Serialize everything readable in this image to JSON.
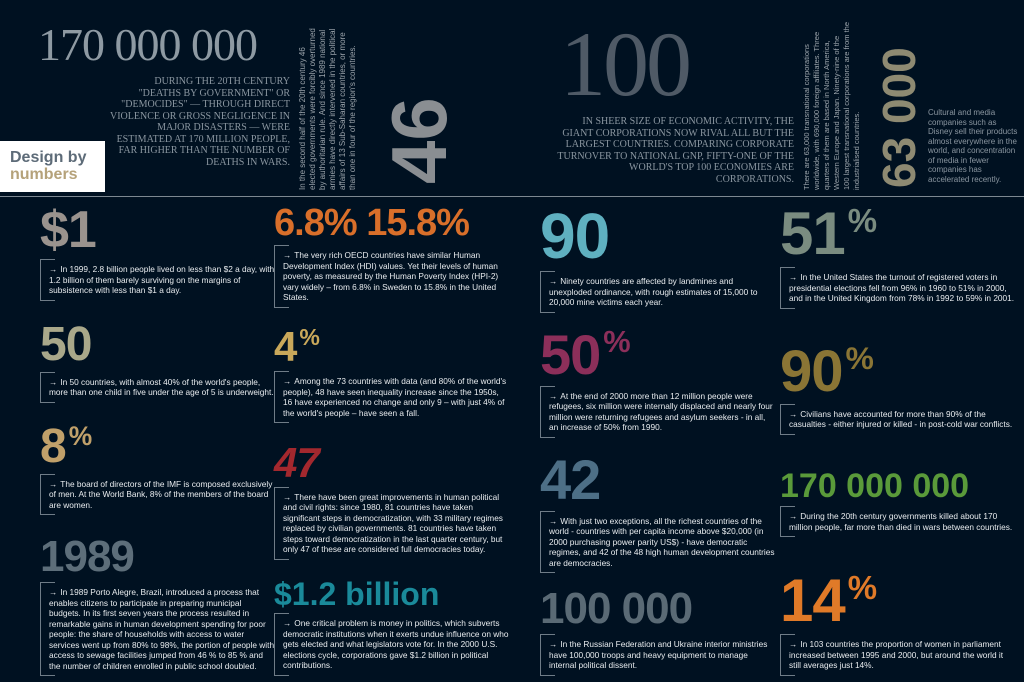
{
  "header": {
    "logo": {
      "line1": "Design by",
      "line2": "numbers",
      "colors": {
        "line1": "#5d6b78",
        "line2": "#b5a27a"
      }
    },
    "deaths": {
      "figure": "170 000 000",
      "text": "During the 20th century \"deaths by government\" or \"democides\" — through direct violence or gross negligence in major disasters — were estimated at 170 million people, far higher than the number of deaths in wars."
    },
    "coups": {
      "figure": "46",
      "text": "In the second half of the 20th century 46 elected governments were forcibly overturned by authoritarian rule. And since 1989 national armies have directly intervened in the political affairs of 13 Sub-Saharan countries, or more than one in four of the region's countries."
    },
    "economies": {
      "figure": "100",
      "text": "In sheer size of economic activity, the giant corporations now rival all but the largest countries. Comparing corporate turnover to national GNP, fifty-one of the world's top 100 economies are corporations."
    },
    "transnationals": {
      "figure": "63 000",
      "text": "There are 63,000 transnational corporations worldwide, with 690,000 foreign affiliates. Three quarters of them are based in North America, Western Europe and Japan. Ninety-nine of the 100 largest transnational corporations are from the industrialised countries."
    },
    "media": {
      "text": "Cultural and media companies such as Disney sell their products almost everywhere in the world, and concentration of media in fewer companies has accelerated recently."
    }
  },
  "arrow_icon": "→",
  "facts": [
    {
      "figure": "$1",
      "color": "#9a938e",
      "text": "In 1999, 2.8 billion people lived on less than $2 a day, with 1.2 billion of them barely surviving on the margins of subsistence with less than $1 a day."
    },
    {
      "figure": "50",
      "color": "#a9a88a",
      "text": "In 50 countries, with almost 40% of the world's people, more than one child in five under the age of 5 is underweight."
    },
    {
      "figure": "8",
      "suffix": "%",
      "color": "#c0a06a",
      "text": "The board of directors of the IMF is composed exclusively of men. At the World Bank, 8% of the members of the board are women."
    },
    {
      "figure": "1989",
      "color": "#5d6e7a",
      "text": "In 1989 Porto Alegre, Brazil, introduced a process that enables citizens to participate in preparing municipal budgets. In its first seven years the process resulted in remarkable gains in human development spending for poor people: the share of households with access to water services went up from 80% to 98%, the portion of people with access to sewage facilities jumped from 46 % to 85 % and the number of children enrolled in public school doubled."
    },
    {
      "figure": "6.8",
      "figure2": "15.8",
      "suffix": "%",
      "color": "#d96f2a",
      "text": "The very rich OECD countries have similar Human Development Index (HDI) values. Yet their levels of human poverty, as measured by the Human Poverty Index (HPI-2) vary widely – from 6.8% in Sweden to 15.8% in the United States."
    },
    {
      "figure": "4",
      "suffix": "%",
      "color": "#c9a85a",
      "text": "Among the 73 countries with data (and 80% of the world's people), 48 have seen inequality increase since the 1950s, 16 have experienced no change and only 9 – with just 4% of the world's people – have seen a fall."
    },
    {
      "figure": "47",
      "color": "#a3282e",
      "text": "There have been great improvements in human political and civil rights: since 1980, 81 countries have taken significant steps in democratization, with 33 military regimes replaced by civilian governments. 81 countries have taken steps toward democratization in the last quarter century, but only 47 of these are considered full democracies today."
    },
    {
      "figure": "$1.2 billion",
      "color": "#1a8a9a",
      "text": "One critical problem is money in politics, which subverts democratic institutions when it exerts undue influence on who gets elected and what legislators vote for. In the 2000 U.S. elections cycle, corporations gave $1.2 billion in political contributions."
    },
    {
      "figure": "90",
      "color": "#5fb0c0",
      "text": "Ninety countries are affected by landmines and unexploded ordinance, with rough estimates of 15,000 to 20,000 mine victims each year."
    },
    {
      "figure": "50",
      "suffix": "%",
      "color": "#8c2f5a",
      "text": "At the end of 2000 more than 12 million people were refugees, six million were internally displaced and nearly four million were returning refugees and asylum seekers - in all, an increase of 50% from 1990."
    },
    {
      "figure": "42",
      "color": "#4d6f86",
      "text": "With just two exceptions, all the richest countries of the world - countries with per capita income above $20,000 (in 2000 purchasing power parity US$) - have democratic regimes, and 42 of the 48 high human development countries are democracies."
    },
    {
      "figure": "100 000",
      "color": "#5a6a75",
      "text": "In the Russian Federation and Ukraine interior ministries have 100,000 troops and heavy equipment to manage internal political dissent."
    },
    {
      "figure": "51",
      "suffix": "%",
      "color": "#7a8c80",
      "text": "In the United States the turnout of registered voters in presidential elections fell from 96% in 1960 to 51% in 2000, and in the United Kingdom from 78% in 1992 to 59% in 2001."
    },
    {
      "figure": "90",
      "suffix": "%",
      "color": "#8a7535",
      "text": "Civilians have accounted for more than 90% of the casualties - either injured or killed - in post-cold war conflicts."
    },
    {
      "figure": "170 000 000",
      "color": "#5a9a3a",
      "text": "During the 20th century governments killed about 170 million people, far more than died in wars between countries."
    },
    {
      "figure": "14",
      "suffix": "%",
      "color": "#e07a28",
      "text": "In 103 countries the proportion of women in parliament increased between 1995 and 2000, but around the world it still averages just 14%."
    }
  ]
}
